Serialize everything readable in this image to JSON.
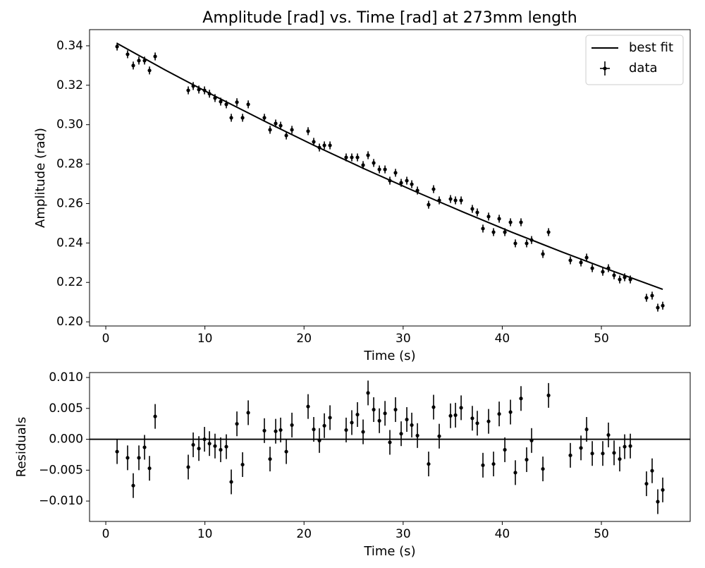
{
  "chart_data": [
    {
      "type": "line",
      "title": "Amplitude [rad] vs. Time [rad] at 273mm length",
      "xlabel": "Time (s)",
      "ylabel": "Amplitude (rad)",
      "xlim": [
        -1.64,
        58.96
      ],
      "ylim": [
        0.1979,
        0.3482
      ],
      "xticks": [
        0,
        10,
        20,
        30,
        40,
        50
      ],
      "yticks": [
        {
          "value": 0.2,
          "label": "0.20"
        },
        0.22,
        0.24,
        0.26,
        0.28,
        {
          "value": 0.3,
          "label": "0.30"
        },
        0.32,
        0.34
      ],
      "legend": "upper right",
      "series": [
        {
          "name": "best fit",
          "type": "line",
          "color": "#000000",
          "x": [
            1.14,
            6,
            11,
            16,
            21,
            26,
            31,
            36,
            41,
            46,
            51,
            56.19
          ],
          "values": [
            0.3412,
            0.3277,
            0.3145,
            0.3018,
            0.2895,
            0.2778,
            0.2666,
            0.2558,
            0.2454,
            0.2355,
            0.226,
            0.2165
          ]
        },
        {
          "name": "data",
          "type": "errorbar",
          "color": "#000000",
          "yerr": 0.002,
          "x": [
            1.14,
            2.2,
            2.77,
            3.34,
            3.91,
            4.41,
            4.98,
            8.32,
            8.82,
            9.39,
            9.96,
            10.46,
            11.02,
            11.59,
            12.16,
            12.66,
            13.23,
            13.8,
            14.37,
            16.0,
            16.57,
            17.14,
            17.64,
            18.21,
            18.78,
            20.41,
            20.98,
            21.55,
            22.05,
            22.62,
            24.25,
            24.82,
            25.39,
            25.96,
            26.46,
            27.03,
            27.6,
            28.17,
            28.66,
            29.23,
            29.8,
            30.37,
            30.87,
            31.44,
            32.57,
            33.07,
            33.64,
            34.78,
            35.28,
            35.85,
            36.98,
            37.48,
            38.05,
            38.62,
            39.12,
            39.69,
            40.26,
            40.83,
            41.32,
            41.89,
            42.46,
            42.96,
            44.1,
            44.67,
            46.87,
            47.94,
            48.51,
            49.08,
            50.14,
            50.71,
            51.28,
            51.85,
            52.35,
            52.92,
            54.55,
            55.12,
            55.69,
            56.19
          ],
          "values": [
            0.3396,
            0.3357,
            0.33,
            0.3325,
            0.3325,
            0.3275,
            0.3346,
            0.3174,
            0.3196,
            0.3178,
            0.3174,
            0.3157,
            0.3135,
            0.3117,
            0.3103,
            0.3035,
            0.3114,
            0.3035,
            0.3103,
            0.3035,
            0.2974,
            0.3006,
            0.2995,
            0.2945,
            0.2974,
            0.2967,
            0.2913,
            0.2884,
            0.2895,
            0.2895,
            0.2834,
            0.2834,
            0.2834,
            0.2795,
            0.2845,
            0.2806,
            0.2773,
            0.2773,
            0.2716,
            0.2756,
            0.2705,
            0.2716,
            0.2698,
            0.2666,
            0.2594,
            0.2673,
            0.2616,
            0.2623,
            0.2616,
            0.2616,
            0.2573,
            0.2555,
            0.2473,
            0.2534,
            0.2455,
            0.2523,
            0.2455,
            0.2505,
            0.2398,
            0.2505,
            0.2398,
            0.2415,
            0.2344,
            0.2455,
            0.2312,
            0.2301,
            0.2326,
            0.2272,
            0.2254,
            0.2272,
            0.2236,
            0.2215,
            0.2226,
            0.2215,
            0.2122,
            0.2133,
            0.2072,
            0.2082
          ]
        }
      ]
    },
    {
      "type": "line",
      "xlabel": "Time (s)",
      "ylabel": "Residuals",
      "xlim": [
        -1.64,
        58.96
      ],
      "ylim": [
        -0.0133,
        0.0108
      ],
      "xticks": [
        0,
        10,
        20,
        30,
        40,
        50
      ],
      "yticks": [
        {
          "value": 0.01,
          "label": "0.010"
        },
        {
          "value": 0.005,
          "label": "0.005"
        },
        {
          "value": 0,
          "label": "0.000"
        },
        {
          "value": -0.005,
          "label": "−0.005"
        },
        {
          "value": -0.01,
          "label": "−0.010"
        }
      ],
      "axhline": 0,
      "series": [
        {
          "type": "errorbar",
          "color": "#000000",
          "yerr": 0.002,
          "x": [
            1.14,
            2.2,
            2.77,
            3.34,
            3.91,
            4.41,
            4.98,
            8.32,
            8.82,
            9.39,
            9.96,
            10.46,
            11.02,
            11.59,
            12.16,
            12.66,
            13.23,
            13.8,
            14.37,
            16.0,
            16.57,
            17.14,
            17.64,
            18.21,
            18.78,
            20.41,
            20.98,
            21.55,
            22.05,
            22.62,
            24.25,
            24.82,
            25.39,
            25.96,
            26.46,
            27.03,
            27.6,
            28.17,
            28.66,
            29.23,
            29.8,
            30.37,
            30.87,
            31.44,
            32.57,
            33.07,
            33.64,
            34.78,
            35.28,
            35.85,
            36.98,
            37.48,
            38.05,
            38.62,
            39.12,
            39.69,
            40.26,
            40.83,
            41.32,
            41.89,
            42.46,
            42.96,
            44.1,
            44.67,
            46.87,
            47.94,
            48.51,
            49.08,
            50.14,
            50.71,
            51.28,
            51.85,
            52.35,
            52.92,
            54.55,
            55.12,
            55.69,
            56.19
          ],
          "values": [
            -0.002,
            -0.003,
            -0.0075,
            -0.003,
            -0.0013,
            -0.0047,
            0.0037,
            -0.0045,
            -0.0009,
            -0.0015,
            0.0,
            -0.0007,
            -0.0011,
            -0.0017,
            -0.0012,
            -0.0069,
            0.0025,
            -0.0041,
            0.0043,
            0.0014,
            -0.0032,
            0.0013,
            0.0015,
            -0.002,
            0.0023,
            0.0053,
            0.0016,
            -0.0002,
            0.0022,
            0.0035,
            0.0015,
            0.0027,
            0.004,
            0.0012,
            0.0075,
            0.0048,
            0.003,
            0.0042,
            -0.0005,
            0.0048,
            0.0009,
            0.0032,
            0.0023,
            0.0006,
            -0.004,
            0.0052,
            0.0005,
            0.0038,
            0.0039,
            0.0051,
            0.0034,
            0.0026,
            -0.0042,
            0.0029,
            -0.004,
            0.0041,
            -0.0017,
            0.0044,
            -0.0054,
            0.0066,
            -0.0033,
            -0.0002,
            -0.0048,
            0.0071,
            -0.0026,
            -0.0014,
            0.0016,
            -0.0023,
            -0.0023,
            0.0007,
            -0.0022,
            -0.0032,
            -0.0012,
            -0.0011,
            -0.0072,
            -0.0051,
            -0.0101,
            -0.0082
          ]
        }
      ]
    }
  ]
}
